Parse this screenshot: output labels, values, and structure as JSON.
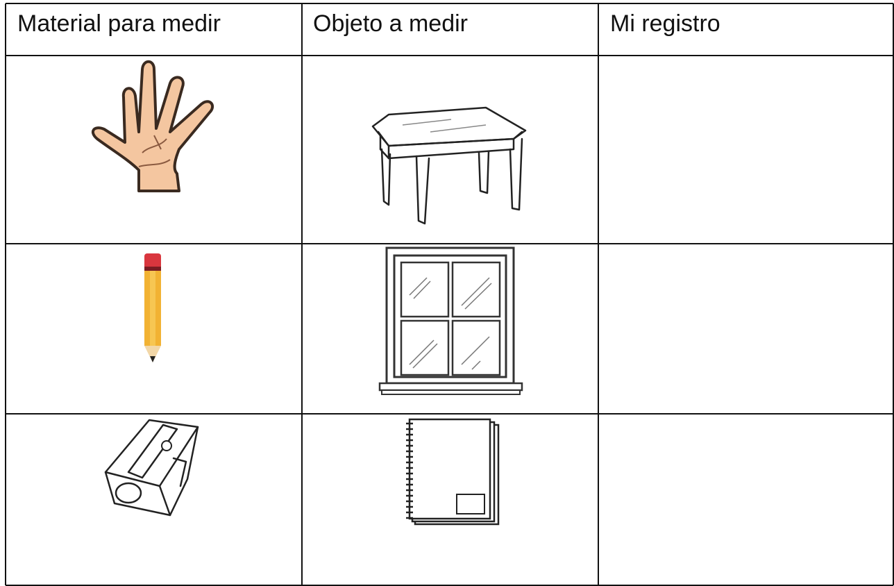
{
  "table": {
    "headers": [
      "Material para medir",
      "Objeto a medir",
      "Mi registro"
    ]
  }
}
